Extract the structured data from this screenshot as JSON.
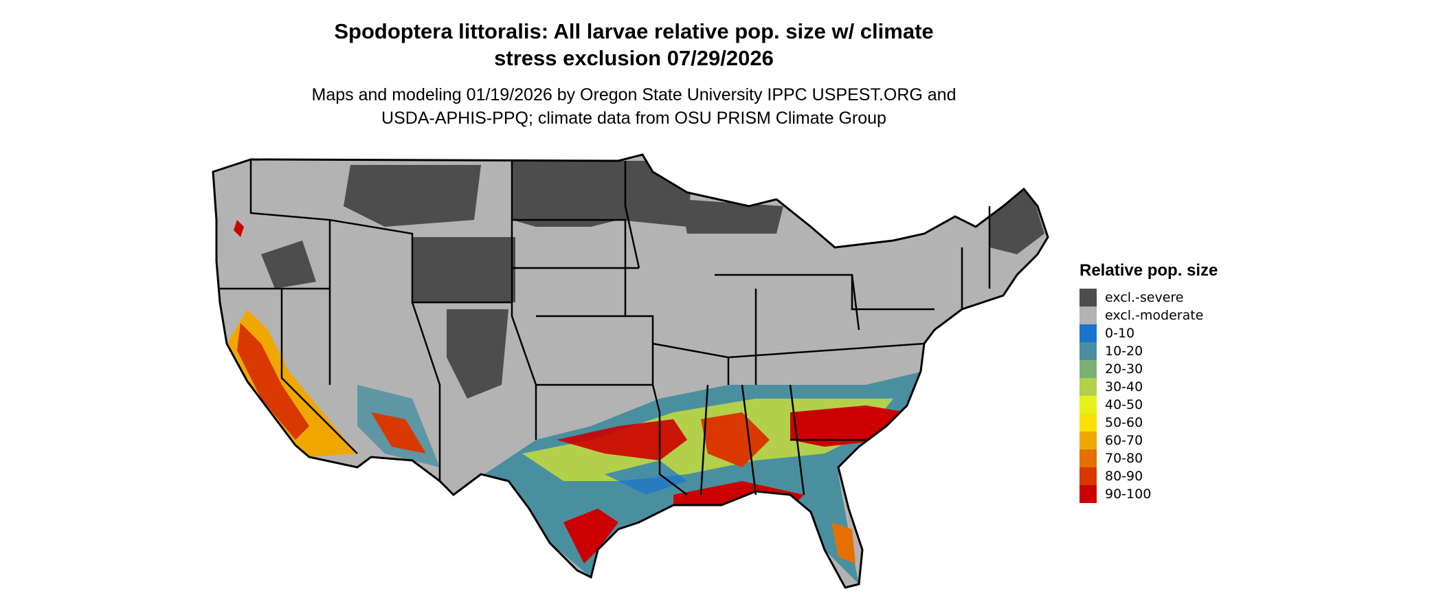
{
  "title_line1": "Spodoptera littoralis: All larvae relative pop. size w/ climate",
  "title_line2": "stress exclusion 07/29/2026",
  "subtitle_line1": "Maps and modeling 01/19/2026 by Oregon State University IPPC USPEST.ORG and",
  "subtitle_line2": "USDA-APHIS-PPQ; climate data from OSU PRISM Climate Group",
  "map": {
    "region": "Contiguous United States",
    "state_borders": true
  },
  "legend": {
    "title": "Relative pop. size",
    "items": [
      {
        "label": "excl.-severe",
        "color": "#4d4d4d"
      },
      {
        "label": "excl.-moderate",
        "color": "#b3b3b3"
      },
      {
        "label": "0-10",
        "color": "#1874cd"
      },
      {
        "label": "10-20",
        "color": "#4a8fa0"
      },
      {
        "label": "20-30",
        "color": "#7caf75"
      },
      {
        "label": "30-40",
        "color": "#b2d04a"
      },
      {
        "label": "40-50",
        "color": "#e5f218"
      },
      {
        "label": "50-60",
        "color": "#f9e000"
      },
      {
        "label": "60-70",
        "color": "#f0a800"
      },
      {
        "label": "70-80",
        "color": "#e57000"
      },
      {
        "label": "80-90",
        "color": "#d93800"
      },
      {
        "label": "90-100",
        "color": "#cc0000"
      }
    ]
  }
}
